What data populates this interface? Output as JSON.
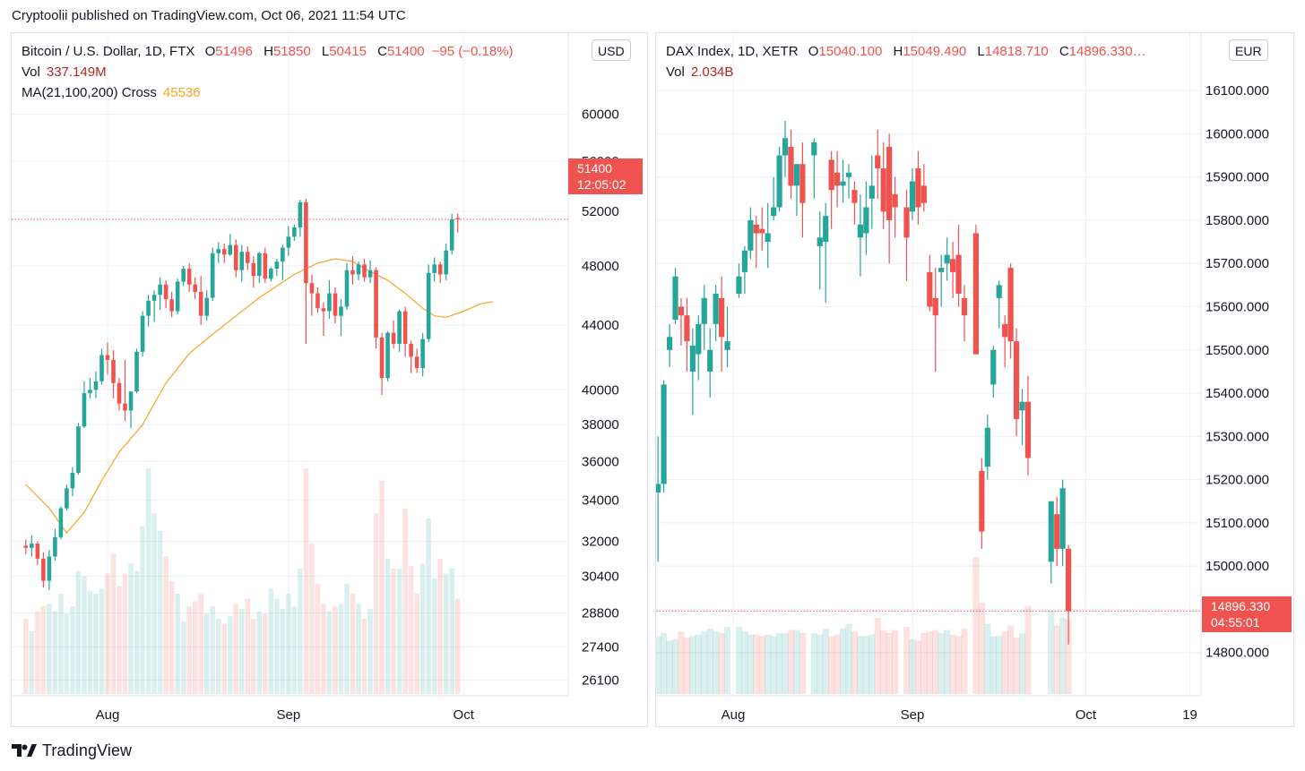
{
  "header": {
    "published": "Cryptoolii published on TradingView.com, Oct 06, 2021 11:54 UTC"
  },
  "footer": {
    "brand": "TradingView"
  },
  "colors": {
    "up": "#26a69a",
    "down": "#ef5350",
    "ma": "#f5a623",
    "grid": "#eef0f4",
    "axis_text": "#131722"
  },
  "btc": {
    "title": "Bitcoin / U.S. Dollar, 1D, FTX",
    "o_label": "O",
    "o": "51496",
    "h_label": "H",
    "h": "51850",
    "l_label": "L",
    "l": "50415",
    "c_label": "C",
    "c": "51400",
    "change": "−95 (−0.18%)",
    "vol_label": "Vol",
    "vol": "337.149M",
    "ma_label": "MA(21,100,200) Cross",
    "ma": "45536",
    "currency": "USD",
    "last_price": "51400",
    "countdown": "12:05:02"
  },
  "dax": {
    "title": "DAX Index, 1D, XETR",
    "o_label": "O",
    "o": "15040.100",
    "h_label": "H",
    "h": "15049.490",
    "l_label": "L",
    "l": "14818.710",
    "c_label": "C",
    "c": "14896.330…",
    "vol_label": "Vol",
    "vol": "2.034B",
    "currency": "EUR",
    "last_price": "14896.330",
    "countdown": "04:55:01"
  },
  "chart_data": [
    {
      "type": "candlestick",
      "scale": "log",
      "title": "Bitcoin / U.S. Dollar, 1D, FTX",
      "x_labels": [
        "Aug",
        "Sep",
        "Oct"
      ],
      "x_label_days": [
        0,
        31,
        61
      ],
      "y_ticks": [
        26100,
        27400,
        28800,
        30400,
        32000,
        34000,
        36000,
        38000,
        40000,
        44000,
        48000,
        52000,
        56000,
        60000
      ],
      "ylim": [
        25500,
        61000
      ],
      "first_day": -14,
      "last_day": 67,
      "ohlc": [
        [
          31800,
          32100,
          31400,
          31700
        ],
        [
          31700,
          32300,
          31300,
          31900
        ],
        [
          31900,
          32000,
          30900,
          31200
        ],
        [
          31200,
          31500,
          29900,
          30200
        ],
        [
          30200,
          31600,
          29800,
          31300
        ],
        [
          31300,
          32600,
          31100,
          32200
        ],
        [
          32200,
          33700,
          32100,
          33600
        ],
        [
          33600,
          34800,
          33500,
          34600
        ],
        [
          34600,
          35700,
          34200,
          35400
        ],
        [
          35400,
          38100,
          35300,
          37900
        ],
        [
          37900,
          40500,
          37800,
          39800
        ],
        [
          39800,
          40700,
          39500,
          40000
        ],
        [
          40000,
          41100,
          39500,
          40500
        ],
        [
          40500,
          42500,
          40300,
          42100
        ],
        [
          42100,
          42900,
          40900,
          41800
        ],
        [
          41800,
          42400,
          39500,
          40400
        ],
        [
          40400,
          40700,
          38800,
          39200
        ],
        [
          39200,
          41800,
          38200,
          38800
        ],
        [
          38800,
          39800,
          37800,
          39900
        ],
        [
          39900,
          42500,
          39800,
          42300
        ],
        [
          42300,
          44900,
          42000,
          44600
        ],
        [
          44600,
          46000,
          43900,
          45600
        ],
        [
          45600,
          46300,
          44200,
          46000
        ],
        [
          46000,
          47200,
          45000,
          46700
        ],
        [
          46700,
          47000,
          45100,
          45700
        ],
        [
          45700,
          46200,
          44500,
          44900
        ],
        [
          44900,
          47100,
          44700,
          46900
        ],
        [
          46900,
          48000,
          46600,
          47800
        ],
        [
          47800,
          48200,
          46200,
          46700
        ],
        [
          46700,
          47200,
          45700,
          46200
        ],
        [
          46200,
          47300,
          44000,
          44600
        ],
        [
          44600,
          46300,
          44300,
          45800
        ],
        [
          45800,
          49300,
          45600,
          48900
        ],
        [
          48900,
          49700,
          48200,
          49200
        ],
        [
          49200,
          49600,
          48200,
          48800
        ],
        [
          48800,
          50300,
          48700,
          49500
        ],
        [
          49500,
          49900,
          47200,
          47700
        ],
        [
          47700,
          49500,
          46900,
          49000
        ],
        [
          49000,
          49400,
          47700,
          48200
        ],
        [
          48200,
          48700,
          46500,
          47300
        ],
        [
          47300,
          49000,
          46800,
          48900
        ],
        [
          48900,
          49300,
          46800,
          47100
        ],
        [
          47100,
          47900,
          46900,
          47800
        ],
        [
          47800,
          48500,
          47300,
          48300
        ],
        [
          48300,
          49500,
          47000,
          49300
        ],
        [
          49300,
          50900,
          48700,
          50100
        ],
        [
          50100,
          51000,
          49800,
          50800
        ],
        [
          50800,
          52900,
          50100,
          52700
        ],
        [
          52700,
          53000,
          42800,
          46800
        ],
        [
          46800,
          47400,
          44600,
          46100
        ],
        [
          46100,
          46500,
          44800,
          45100
        ],
        [
          45100,
          45500,
          43300,
          44900
        ],
        [
          44900,
          47000,
          44400,
          46100
        ],
        [
          46100,
          46500,
          44100,
          44600
        ],
        [
          44600,
          45700,
          43300,
          45200
        ],
        [
          45200,
          48200,
          45000,
          47700
        ],
        [
          47700,
          48700,
          46700,
          47400
        ],
        [
          47400,
          48300,
          47000,
          48100
        ],
        [
          48100,
          48500,
          46900,
          47200
        ],
        [
          47200,
          48400,
          46800,
          47700
        ],
        [
          47700,
          47900,
          42500,
          43200
        ],
        [
          43200,
          43500,
          39700,
          40700
        ],
        [
          40700,
          43600,
          40500,
          43500
        ],
        [
          43500,
          44300,
          42500,
          42800
        ],
        [
          42800,
          45000,
          42300,
          44900
        ],
        [
          44900,
          45200,
          42000,
          42800
        ],
        [
          42800,
          43000,
          41000,
          42000
        ],
        [
          42000,
          42500,
          41000,
          41300
        ],
        [
          41300,
          43500,
          40800,
          43100
        ],
        [
          43100,
          48100,
          42900,
          47500
        ],
        [
          47500,
          48600,
          46900,
          48100
        ],
        [
          48100,
          48300,
          46800,
          47400
        ],
        [
          47400,
          49600,
          47000,
          49100
        ],
        [
          49100,
          51800,
          48800,
          51400
        ],
        [
          51496,
          51850,
          50415,
          51400
        ]
      ],
      "volume": [
        0.3,
        0.25,
        0.33,
        0.35,
        0.36,
        0.33,
        0.4,
        0.32,
        0.35,
        0.49,
        0.47,
        0.41,
        0.4,
        0.42,
        0.48,
        0.56,
        0.43,
        0.48,
        0.52,
        0.49,
        0.67,
        0.9,
        0.72,
        0.65,
        0.55,
        0.45,
        0.4,
        0.29,
        0.35,
        0.37,
        0.4,
        0.32,
        0.35,
        0.3,
        0.28,
        0.31,
        0.36,
        0.34,
        0.38,
        0.3,
        0.33,
        0.32,
        0.42,
        0.38,
        0.34,
        0.4,
        0.35,
        0.5,
        0.9,
        0.6,
        0.44,
        0.36,
        0.33,
        0.35,
        0.36,
        0.44,
        0.4,
        0.36,
        0.3,
        0.34,
        0.72,
        0.85,
        0.54,
        0.5,
        0.5,
        0.74,
        0.51,
        0.4,
        0.52,
        0.7,
        0.46,
        0.54,
        0.48,
        0.5,
        0.38
      ],
      "ma": [
        [
          -14,
          34800
        ],
        [
          -10,
          33600
        ],
        [
          -7,
          32400
        ],
        [
          -4,
          33400
        ],
        [
          -1,
          35000
        ],
        [
          2,
          36500
        ],
        [
          6,
          38000
        ],
        [
          10,
          40400
        ],
        [
          14,
          42200
        ],
        [
          18,
          43400
        ],
        [
          22,
          44600
        ],
        [
          26,
          45800
        ],
        [
          29,
          46600
        ],
        [
          32,
          47400
        ],
        [
          36,
          48200
        ],
        [
          39,
          48500
        ],
        [
          42,
          48300
        ],
        [
          45,
          47600
        ],
        [
          48,
          47000
        ],
        [
          51,
          46100
        ],
        [
          54,
          45100
        ],
        [
          56,
          44600
        ],
        [
          58,
          44500
        ],
        [
          61,
          44900
        ],
        [
          64,
          45400
        ],
        [
          66,
          45536
        ]
      ]
    },
    {
      "type": "candlestick",
      "scale": "linear",
      "title": "DAX Index, 1D, XETR",
      "x_labels": [
        "Aug",
        "Sep",
        "Oct",
        "19"
      ],
      "x_label_days": [
        0,
        31,
        61,
        79
      ],
      "y_ticks": [
        14800,
        14900,
        15000,
        15100,
        15200,
        15300,
        15400,
        15500,
        15600,
        15700,
        15800,
        15900,
        16000,
        16100
      ],
      "ylim": [
        14700,
        16150
      ],
      "first_day": -13,
      "last_day": 81,
      "ohlc": [
        [
          15170,
          15300,
          15010,
          15190
        ],
        [
          15190,
          15430,
          15170,
          15420
        ],
        [
          15500,
          15560,
          15460,
          15530
        ],
        [
          15570,
          15690,
          15560,
          15670
        ],
        [
          15600,
          15620,
          15510,
          15580
        ],
        [
          15580,
          15620,
          15450,
          15520
        ],
        [
          15450,
          15550,
          15350,
          15510
        ],
        [
          15490,
          15580,
          15430,
          15560
        ],
        [
          15560,
          15650,
          15500,
          15620
        ],
        [
          15450,
          15550,
          15390,
          15500
        ],
        [
          15560,
          15650,
          15520,
          15630
        ],
        [
          15620,
          15670,
          15450,
          15530
        ],
        [
          15500,
          15600,
          15460,
          15520
        ],
        [
          15630,
          15700,
          15620,
          15670
        ],
        [
          15680,
          15740,
          15630,
          15730
        ],
        [
          15730,
          15830,
          15710,
          15800
        ],
        [
          15790,
          15810,
          15690,
          15770
        ],
        [
          15780,
          15830,
          15730,
          15770
        ],
        [
          15750,
          15840,
          15690,
          15770
        ],
        [
          15810,
          15900,
          15800,
          15830
        ],
        [
          15830,
          15970,
          15820,
          15950
        ],
        [
          15950,
          16030,
          15900,
          15990
        ],
        [
          15970,
          16010,
          15850,
          15880
        ],
        [
          15880,
          15920,
          15810,
          15930
        ],
        [
          15930,
          15980,
          15760,
          15840
        ],
        [
          15950,
          15990,
          15850,
          15980
        ],
        [
          15740,
          15820,
          15640,
          15760
        ],
        [
          15750,
          15840,
          15610,
          15810
        ],
        [
          15940,
          15960,
          15780,
          15870
        ],
        [
          15910,
          15960,
          15830,
          15880
        ],
        [
          15880,
          15940,
          15840,
          15890
        ],
        [
          15900,
          15930,
          15850,
          15910
        ],
        [
          15870,
          15890,
          15790,
          15840
        ],
        [
          15760,
          15860,
          15670,
          15790
        ],
        [
          15770,
          15890,
          15720,
          15830
        ],
        [
          15850,
          15950,
          15780,
          15880
        ],
        [
          15950,
          16010,
          15850,
          15920
        ],
        [
          15920,
          15980,
          15780,
          15820
        ],
        [
          15970,
          16000,
          15700,
          15800
        ],
        [
          15860,
          15900,
          15760,
          15830
        ],
        [
          15830,
          15870,
          15660,
          15760
        ],
        [
          15820,
          15920,
          15800,
          15890
        ],
        [
          15920,
          15960,
          15790,
          15830
        ],
        [
          15880,
          15930,
          15820,
          15840
        ],
        [
          15680,
          15720,
          15590,
          15600
        ],
        [
          15620,
          15690,
          15450,
          15580
        ],
        [
          15680,
          15720,
          15600,
          15690
        ],
        [
          15700,
          15760,
          15660,
          15720
        ],
        [
          15710,
          15750,
          15620,
          15680
        ],
        [
          15720,
          15790,
          15600,
          15630
        ],
        [
          15620,
          15650,
          15520,
          15580
        ],
        [
          15770,
          15790,
          15490,
          15490
        ],
        [
          15220,
          15250,
          15040,
          15080
        ],
        [
          15230,
          15350,
          15200,
          15320
        ],
        [
          15420,
          15510,
          15390,
          15500
        ],
        [
          15620,
          15660,
          15550,
          15650
        ],
        [
          15560,
          15580,
          15460,
          15530
        ],
        [
          15690,
          15700,
          15480,
          15520
        ],
        [
          15520,
          15550,
          15300,
          15340
        ],
        [
          15360,
          15410,
          15280,
          15380
        ],
        [
          15380,
          15440,
          15210,
          15250
        ],
        [
          15010,
          15150,
          14960,
          15150
        ],
        [
          15120,
          15160,
          15000,
          15040
        ],
        [
          15040,
          15200,
          15000,
          15180
        ],
        [
          15040,
          15049,
          14819,
          14896
        ]
      ],
      "ohlc_days": [
        -13,
        -12,
        -11,
        -10,
        -9,
        -8,
        -7,
        -6,
        -5,
        -4,
        -3,
        -2,
        -1,
        1,
        2,
        3,
        4,
        5,
        6,
        7,
        8,
        9,
        10,
        11,
        12,
        14,
        15,
        16,
        17,
        18,
        19,
        20,
        21,
        22,
        23,
        24,
        25,
        26,
        27,
        28,
        30,
        31,
        32,
        33,
        34,
        35,
        36,
        37,
        38,
        39,
        40,
        42,
        43,
        44,
        45,
        46,
        47,
        48,
        49,
        50,
        51,
        55,
        56,
        57,
        58
      ],
      "volume": [
        0.38,
        0.4,
        0.35,
        0.36,
        0.41,
        0.37,
        0.38,
        0.39,
        0.41,
        0.43,
        0.41,
        0.4,
        0.44,
        0.44,
        0.41,
        0.39,
        0.39,
        0.38,
        0.39,
        0.38,
        0.4,
        0.4,
        0.42,
        0.42,
        0.4,
        0.4,
        0.39,
        0.43,
        0.38,
        0.39,
        0.43,
        0.46,
        0.41,
        0.38,
        0.38,
        0.39,
        0.5,
        0.42,
        0.4,
        0.42,
        0.44,
        0.36,
        0.35,
        0.4,
        0.41,
        0.42,
        0.4,
        0.42,
        0.39,
        0.38,
        0.43,
        0.9,
        0.6,
        0.46,
        0.38,
        0.38,
        0.41,
        0.45,
        0.37,
        0.4,
        0.58,
        0.55,
        0.45,
        0.5,
        0.49
      ]
    }
  ]
}
